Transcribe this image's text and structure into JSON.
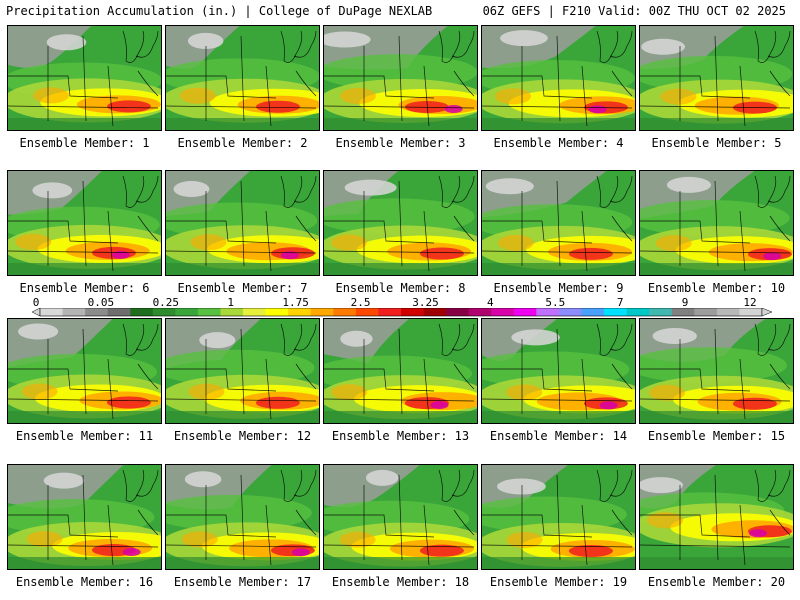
{
  "header": {
    "left_title": "Precipitation Accumulation (in.) | College of DuPage NEXLAB",
    "right_title": "06Z GEFS | F210 Valid: 00Z THU OCT 02 2025"
  },
  "legend": {
    "labels": [
      "0",
      "0.05",
      "0.25",
      "1",
      "1.75",
      "2.5",
      "3.25",
      "4",
      "5.5",
      "7",
      "9",
      "12"
    ],
    "colors": [
      "#d8d8d8",
      "#b4b4b4",
      "#8c8c8c",
      "#6e6e6e",
      "#1e6e1e",
      "#2e8b2e",
      "#3aa63a",
      "#58c040",
      "#a8d83a",
      "#e6f03c",
      "#ffff00",
      "#ffd200",
      "#ffa800",
      "#ff7a00",
      "#ff4800",
      "#f01e1e",
      "#d00000",
      "#a00000",
      "#880044",
      "#b00070",
      "#d800a8",
      "#f000f0",
      "#c070ff",
      "#8c8cff",
      "#4aa0ff",
      "#00e0ff",
      "#00c8c8",
      "#40b8b0",
      "#808080",
      "#9c9c9c",
      "#b8b8b8",
      "#d4d4d4"
    ]
  },
  "ensemble_caption_prefix": "Ensemble Member:",
  "members": [
    {
      "number": "1"
    },
    {
      "number": "2"
    },
    {
      "number": "3"
    },
    {
      "number": "4"
    },
    {
      "number": "5"
    },
    {
      "number": "6"
    },
    {
      "number": "7"
    },
    {
      "number": "8"
    },
    {
      "number": "9"
    },
    {
      "number": "10"
    },
    {
      "number": "11"
    },
    {
      "number": "12"
    },
    {
      "number": "13"
    },
    {
      "number": "14"
    },
    {
      "number": "15"
    },
    {
      "number": "16"
    },
    {
      "number": "17"
    },
    {
      "number": "18"
    },
    {
      "number": "19"
    },
    {
      "number": "20"
    }
  ]
}
